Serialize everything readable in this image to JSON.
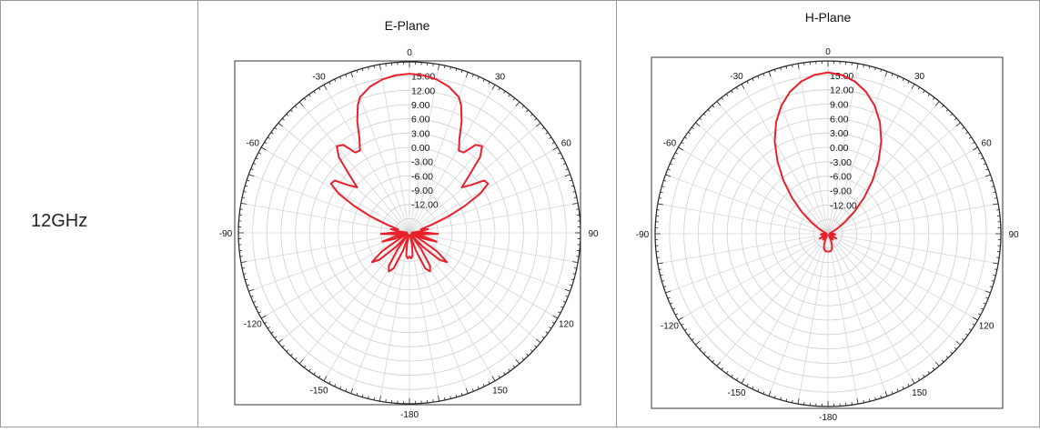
{
  "row_label": "12GHz",
  "chart_data": [
    {
      "type": "polar-line",
      "title": "E-Plane",
      "angle_ticks": [
        0,
        30,
        60,
        90,
        120,
        150,
        -180,
        -150,
        -120,
        -90,
        -60,
        -30
      ],
      "radial_tick_labels": [
        "15.00",
        "12.00",
        "9.00",
        "6.00",
        "3.00",
        "0.00",
        "-3.00",
        "-6.00",
        "-9.00",
        "-12.00"
      ],
      "r_range": [
        -18,
        18
      ],
      "grid": true,
      "color": "#e8202a",
      "series": [
        {
          "angles": [
            0,
            5,
            10,
            15,
            20,
            22,
            25,
            28,
            31,
            34,
            37,
            40,
            43,
            46,
            49,
            52,
            55,
            58,
            61,
            64,
            67,
            70,
            73,
            76,
            79,
            82,
            85,
            88,
            92,
            96,
            100,
            104,
            108,
            112,
            116,
            120,
            124,
            128,
            132,
            136,
            140,
            144,
            148,
            152,
            156,
            160,
            164,
            168,
            172,
            176,
            180,
            184,
            188,
            192,
            196,
            200,
            204,
            208,
            212,
            216,
            220,
            224,
            228,
            232,
            236,
            240,
            244,
            248,
            252,
            256,
            260,
            264,
            268,
            272,
            275,
            278,
            281,
            284,
            287,
            290,
            293,
            296,
            299,
            302,
            305,
            308,
            311,
            314,
            317,
            320,
            323,
            326,
            329,
            332,
            335,
            338,
            340,
            345,
            350,
            355
          ],
          "values": [
            15.5,
            15.3,
            14.8,
            13.9,
            12.4,
            11.0,
            8.0,
            4.4,
            2.2,
            2.4,
            5.2,
            5.8,
            3.8,
            -0.4,
            -3.4,
            -1.7,
            1.2,
            1.5,
            -1.0,
            -5.0,
            -9.0,
            -13.0,
            -15.5,
            -15.0,
            -14.0,
            -16.0,
            -17.5,
            -15.0,
            -12.0,
            -15.0,
            -17.5,
            -15.0,
            -12.0,
            -14.5,
            -17.5,
            -16.0,
            -11.0,
            -8.0,
            -9.5,
            -14.0,
            -17.5,
            -14.0,
            -9.8,
            -8.8,
            -9.8,
            -14.0,
            -17.5,
            -15.5,
            -13.2,
            -12.6,
            -13.0,
            -12.6,
            -13.2,
            -15.5,
            -17.5,
            -14.0,
            -9.8,
            -8.8,
            -9.8,
            -14.0,
            -17.5,
            -14.0,
            -9.5,
            -8.0,
            -11.0,
            -16.0,
            -17.5,
            -14.5,
            -12.0,
            -15.0,
            -17.5,
            -15.0,
            -12.0,
            -15.0,
            -17.5,
            -16.0,
            -14.0,
            -15.0,
            -15.5,
            -13.0,
            -9.0,
            -5.0,
            -1.0,
            1.5,
            1.2,
            -1.7,
            -3.4,
            -0.4,
            3.8,
            5.8,
            5.2,
            2.4,
            2.2,
            4.4,
            8.0,
            11.0,
            12.4,
            13.9,
            14.8,
            15.3
          ]
        }
      ]
    },
    {
      "type": "polar-line",
      "title": "H-Plane",
      "angle_ticks": [
        0,
        30,
        60,
        90,
        120,
        150,
        -180,
        -150,
        -120,
        -90,
        -60,
        -30
      ],
      "radial_tick_labels": [
        "15.00",
        "12.00",
        "9.00",
        "6.00",
        "3.00",
        "0.00",
        "-3.00",
        "-6.00",
        "-9.00",
        "-12.00"
      ],
      "r_range": [
        -18,
        18
      ],
      "grid": true,
      "color": "#e8202a",
      "series": [
        {
          "angles": [
            0,
            5,
            10,
            15,
            20,
            25,
            30,
            35,
            40,
            45,
            50,
            55,
            60,
            65,
            70,
            75,
            80,
            85,
            90,
            95,
            100,
            105,
            110,
            115,
            120,
            125,
            130,
            135,
            140,
            145,
            150,
            155,
            160,
            165,
            170,
            175,
            180,
            185,
            190,
            195,
            200,
            205,
            210,
            215,
            220,
            225,
            230,
            235,
            240,
            245,
            250,
            255,
            260,
            265,
            270,
            275,
            280,
            285,
            290,
            295,
            300,
            305,
            310,
            315,
            320,
            325,
            330,
            335,
            340,
            345,
            350,
            355
          ],
          "values": [
            15.6,
            15.2,
            14.2,
            12.6,
            10.4,
            7.6,
            4.2,
            0.3,
            -3.6,
            -7.4,
            -10.8,
            -13.6,
            -15.6,
            -16.8,
            -17.4,
            -17.6,
            -17.5,
            -17.3,
            -16.8,
            -16.5,
            -16.8,
            -17.4,
            -17.7,
            -17.0,
            -16.0,
            -17.2,
            -17.7,
            -17.2,
            -16.4,
            -16.9,
            -17.6,
            -16.8,
            -15.6,
            -14.8,
            -14.4,
            -14.3,
            -14.3,
            -14.3,
            -14.4,
            -14.8,
            -15.6,
            -16.8,
            -17.6,
            -16.9,
            -16.4,
            -17.2,
            -17.7,
            -17.2,
            -16.0,
            -17.0,
            -17.7,
            -17.4,
            -16.8,
            -16.5,
            -16.8,
            -17.3,
            -17.5,
            -17.6,
            -17.4,
            -16.8,
            -15.6,
            -13.6,
            -10.8,
            -7.4,
            -3.6,
            0.3,
            4.2,
            7.6,
            10.4,
            12.6,
            14.2,
            15.2
          ]
        }
      ]
    }
  ]
}
